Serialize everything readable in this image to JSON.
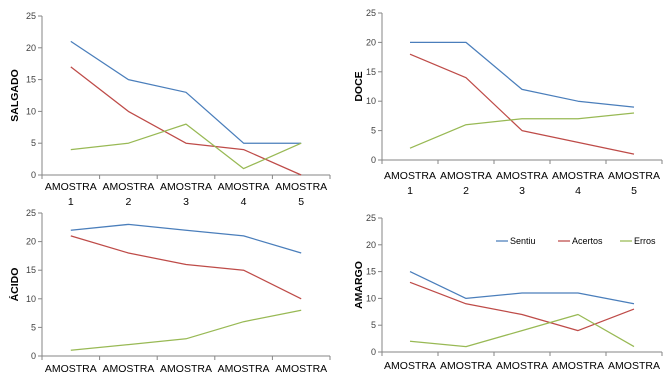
{
  "chart_data": [
    {
      "type": "line",
      "ylabel": "SALGADO",
      "ylim": [
        0,
        25
      ],
      "yticks": [
        "0",
        "5",
        "10",
        "15",
        "20",
        "25"
      ],
      "categories": [
        "AMOSTRA 1",
        "AMOSTRA 2",
        "AMOSTRA 3",
        "AMOSTRA 4",
        "AMOSTRA 5"
      ],
      "category_lines": [
        [
          "AMOSTRA",
          "1"
        ],
        [
          "AMOSTRA",
          "2"
        ],
        [
          "AMOSTRA",
          "3"
        ],
        [
          "AMOSTRA",
          "4"
        ],
        [
          "AMOSTRA",
          "5"
        ]
      ],
      "series": [
        {
          "values": [
            21,
            15,
            13,
            5,
            5
          ],
          "color": "#4a7ebb"
        },
        {
          "values": [
            17,
            10,
            5,
            4,
            0
          ],
          "color": "#be4b48"
        },
        {
          "values": [
            4,
            5,
            8,
            1,
            5
          ],
          "color": "#98b954"
        }
      ]
    },
    {
      "type": "line",
      "ylabel": "DOCE",
      "ylim": [
        0,
        25
      ],
      "yticks": [
        "0",
        "5",
        "10",
        "15",
        "20",
        "25"
      ],
      "categories": [
        "AMOSTRA 1",
        "AMOSTRA 2",
        "AMOSTRA 3",
        "AMOSTRA 4",
        "AMOSTRA 5"
      ],
      "category_lines": [
        [
          "AMOSTRA",
          "1"
        ],
        [
          "AMOSTRA",
          "2"
        ],
        [
          "AMOSTRA",
          "3"
        ],
        [
          "AMOSTRA",
          "4"
        ],
        [
          "AMOSTRA",
          "5"
        ]
      ],
      "series": [
        {
          "values": [
            20,
            20,
            12,
            10,
            9
          ],
          "color": "#4a7ebb"
        },
        {
          "values": [
            18,
            14,
            5,
            3,
            1
          ],
          "color": "#be4b48"
        },
        {
          "values": [
            2,
            6,
            7,
            7,
            8
          ],
          "color": "#98b954"
        }
      ]
    },
    {
      "type": "line",
      "ylabel": "ÁCIDO",
      "ylim": [
        0,
        25
      ],
      "yticks": [
        "0",
        "5",
        "10",
        "15",
        "20",
        "25"
      ],
      "categories": [
        "AMOSTRA",
        "AMOSTRA",
        "AMOSTRA",
        "AMOSTRA",
        "AMOSTRA"
      ],
      "category_lines": [
        [
          "AMOSTRA"
        ],
        [
          "AMOSTRA"
        ],
        [
          "AMOSTRA"
        ],
        [
          "AMOSTRA"
        ],
        [
          "AMOSTRA"
        ]
      ],
      "series": [
        {
          "values": [
            22,
            23,
            22,
            21,
            18
          ],
          "color": "#4a7ebb"
        },
        {
          "values": [
            21,
            18,
            16,
            15,
            10
          ],
          "color": "#be4b48"
        },
        {
          "values": [
            1,
            2,
            3,
            6,
            8
          ],
          "color": "#98b954"
        }
      ]
    },
    {
      "type": "line",
      "ylabel": "AMARGO",
      "ylim": [
        0,
        25
      ],
      "yticks": [
        "0",
        "5",
        "10",
        "15",
        "20",
        "25"
      ],
      "categories": [
        "AMOSTRA",
        "AMOSTRA",
        "AMOSTRA",
        "AMOSTRA",
        "AMOSTRA"
      ],
      "category_lines": [
        [
          "AMOSTRA"
        ],
        [
          "AMOSTRA"
        ],
        [
          "AMOSTRA"
        ],
        [
          "AMOSTRA"
        ],
        [
          "AMOSTRA"
        ]
      ],
      "legend": "top-right",
      "series": [
        {
          "name": "Sentiu",
          "values": [
            15,
            10,
            11,
            11,
            9
          ],
          "color": "#4a7ebb"
        },
        {
          "name": "Acertos",
          "values": [
            13,
            9,
            7,
            4,
            8
          ],
          "color": "#be4b48"
        },
        {
          "name": "Erros",
          "values": [
            2,
            1,
            4,
            7,
            1
          ],
          "color": "#98b954"
        }
      ]
    }
  ]
}
